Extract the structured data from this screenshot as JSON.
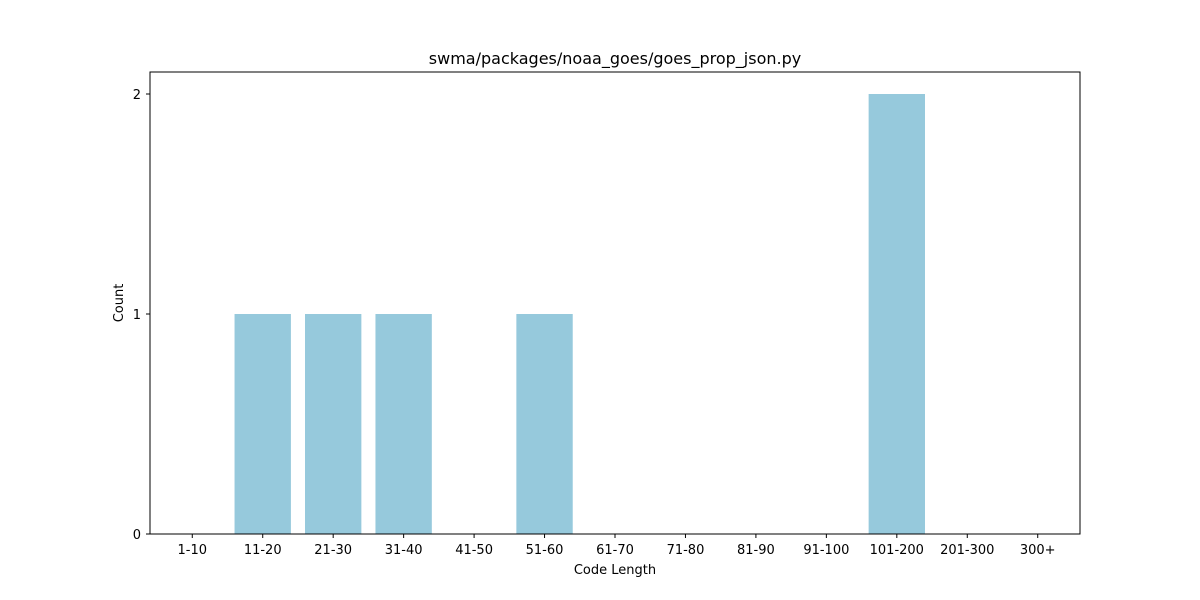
{
  "chart_data": {
    "type": "bar",
    "title": "swma/packages/noaa_goes/goes_prop_json.py",
    "xlabel": "Code Length",
    "ylabel": "Count",
    "categories": [
      "1-10",
      "11-20",
      "21-30",
      "31-40",
      "41-50",
      "51-60",
      "61-70",
      "71-80",
      "81-90",
      "91-100",
      "101-200",
      "201-300",
      "300+"
    ],
    "values": [
      0,
      1,
      1,
      1,
      0,
      1,
      0,
      0,
      0,
      0,
      2,
      0,
      0
    ],
    "ylim": [
      0,
      2.1
    ],
    "yticks": [
      0,
      1,
      2
    ],
    "grid": false,
    "bar_color": "#96c9dc"
  }
}
